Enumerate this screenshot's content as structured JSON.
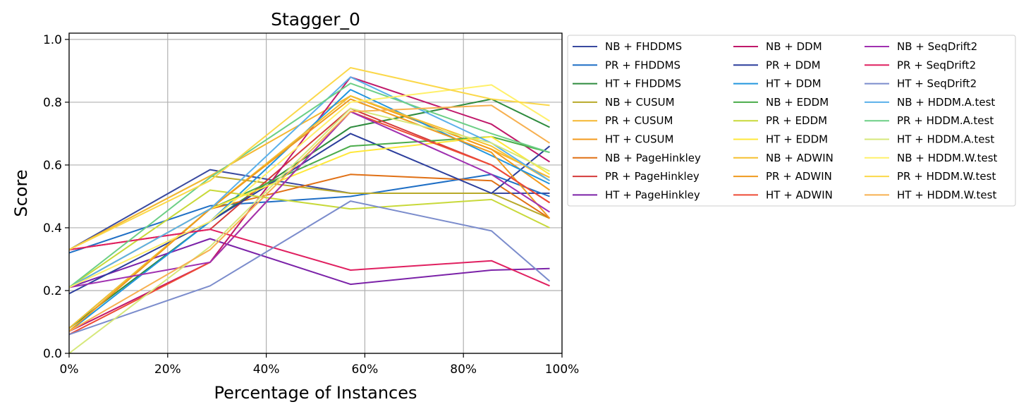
{
  "chart_data": {
    "type": "line",
    "title": "Stagger_0",
    "xlabel": "Percentage of Instances",
    "ylabel": "Score",
    "xlim": [
      0,
      100
    ],
    "ylim": [
      0,
      1.02
    ],
    "x_ticks": [
      "0%",
      "20%",
      "40%",
      "60%",
      "80%",
      "100%"
    ],
    "y_ticks": [
      "0.0",
      "0.2",
      "0.4",
      "0.6",
      "0.8",
      "1.0"
    ],
    "grid": true,
    "legend_position": "outside-right",
    "x": [
      0,
      28.6,
      57.1,
      85.7,
      97.5
    ],
    "series": [
      {
        "name": "NB + FHDDMS",
        "color": "#3a4a9f",
        "values": [
          0.33,
          0.585,
          0.51,
          0.51,
          0.51
        ]
      },
      {
        "name": "PR + FHDDMS",
        "color": "#1f6fc5",
        "values": [
          0.32,
          0.47,
          0.5,
          0.57,
          0.5
        ]
      },
      {
        "name": "HT + FHDDMS",
        "color": "#2e8b3e",
        "values": [
          0.08,
          0.42,
          0.72,
          0.81,
          0.72
        ]
      },
      {
        "name": "NB + CUSUM",
        "color": "#b8a92a",
        "values": [
          0.33,
          0.565,
          0.51,
          0.51,
          0.43
        ]
      },
      {
        "name": "PR + CUSUM",
        "color": "#f5b731",
        "values": [
          0.33,
          0.565,
          0.82,
          0.65,
          0.56
        ]
      },
      {
        "name": "HT + CUSUM",
        "color": "#f39a1c",
        "values": [
          0.07,
          0.46,
          0.82,
          0.65,
          0.52
        ]
      },
      {
        "name": "NB + PageHinkley",
        "color": "#e07015",
        "values": [
          0.21,
          0.46,
          0.57,
          0.55,
          0.43
        ]
      },
      {
        "name": "PR + PageHinkley",
        "color": "#d43a3a",
        "values": [
          0.33,
          0.395,
          0.78,
          0.6,
          0.48
        ]
      },
      {
        "name": "HT + PageHinkley",
        "color": "#7b22a8",
        "values": [
          0.21,
          0.365,
          0.22,
          0.265,
          0.27
        ]
      },
      {
        "name": "NB + DDM",
        "color": "#c0186a",
        "values": [
          0.07,
          0.29,
          0.88,
          0.73,
          0.61
        ]
      },
      {
        "name": "PR + DDM",
        "color": "#2c3e9c",
        "values": [
          0.19,
          0.42,
          0.7,
          0.51,
          0.66
        ]
      },
      {
        "name": "HT + DDM",
        "color": "#2296de",
        "values": [
          0.07,
          0.42,
          0.84,
          0.63,
          0.54
        ]
      },
      {
        "name": "NB + EDDM",
        "color": "#4aac4a",
        "values": [
          0.08,
          0.46,
          0.66,
          0.69,
          0.64
        ]
      },
      {
        "name": "PR + EDDM",
        "color": "#c8d93a",
        "values": [
          0.21,
          0.52,
          0.46,
          0.49,
          0.4
        ]
      },
      {
        "name": "HT + EDDM",
        "color": "#ffe83a",
        "values": [
          0.21,
          0.46,
          0.64,
          0.69,
          0.57
        ]
      },
      {
        "name": "NB + ADWIN",
        "color": "#f5c030",
        "values": [
          0.08,
          0.46,
          0.82,
          0.66,
          0.55
        ]
      },
      {
        "name": "PR + ADWIN",
        "color": "#ef9a1e",
        "values": [
          0.07,
          0.46,
          0.81,
          0.64,
          0.43
        ]
      },
      {
        "name": "HT + ADWIN",
        "color": "#ee4b36",
        "values": [
          0.06,
          0.29,
          0.77,
          0.6,
          0.48
        ]
      },
      {
        "name": "NB + SeqDrift2",
        "color": "#a030b0",
        "values": [
          0.21,
          0.29,
          0.77,
          0.57,
          0.45
        ]
      },
      {
        "name": "PR + SeqDrift2",
        "color": "#e02060",
        "values": [
          0.33,
          0.395,
          0.265,
          0.295,
          0.215
        ]
      },
      {
        "name": "HT + SeqDrift2",
        "color": "#7b8ccc",
        "values": [
          0.06,
          0.215,
          0.485,
          0.39,
          0.23
        ]
      },
      {
        "name": "NB + HDDM.A.test",
        "color": "#5ab0ea",
        "values": [
          0.21,
          0.46,
          0.88,
          0.67,
          0.55
        ]
      },
      {
        "name": "PR + HDDM.A.test",
        "color": "#6ccf86",
        "values": [
          0.21,
          0.56,
          0.86,
          0.7,
          0.64
        ]
      },
      {
        "name": "HT + HDDM.A.test",
        "color": "#d6e87a",
        "values": [
          0.0,
          0.34,
          0.78,
          0.67,
          0.58
        ]
      },
      {
        "name": "NB + HDDM.W.test",
        "color": "#fff06a",
        "values": [
          0.21,
          0.42,
          0.8,
          0.855,
          0.74
        ]
      },
      {
        "name": "PR + HDDM.W.test",
        "color": "#fbd84a",
        "values": [
          0.33,
          0.55,
          0.91,
          0.81,
          0.79
        ]
      },
      {
        "name": "HT + HDDM.W.test",
        "color": "#f7b050",
        "values": [
          0.07,
          0.33,
          0.77,
          0.79,
          0.67
        ]
      }
    ]
  }
}
